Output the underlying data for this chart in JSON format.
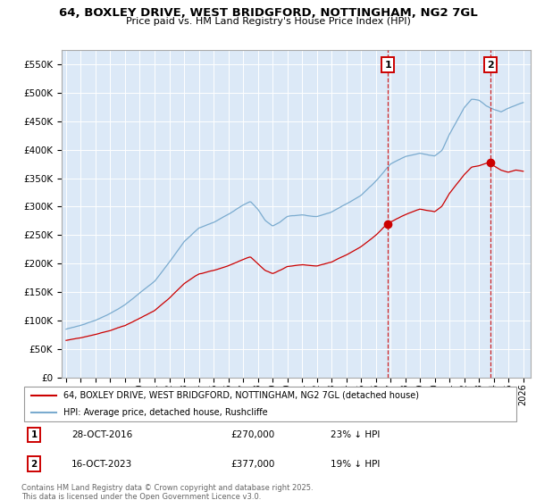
{
  "title": "64, BOXLEY DRIVE, WEST BRIDGFORD, NOTTINGHAM, NG2 7GL",
  "subtitle": "Price paid vs. HM Land Registry's House Price Index (HPI)",
  "ylim": [
    0,
    575000
  ],
  "yticks": [
    0,
    50000,
    100000,
    150000,
    200000,
    250000,
    300000,
    350000,
    400000,
    450000,
    500000,
    550000
  ],
  "ytick_labels": [
    "£0",
    "£50K",
    "£100K",
    "£150K",
    "£200K",
    "£250K",
    "£300K",
    "£350K",
    "£400K",
    "£450K",
    "£500K",
    "£550K"
  ],
  "xlim_start": 1994.7,
  "xlim_end": 2026.5,
  "background_color": "#dce9f7",
  "plot_bg_color": "#dce9f7",
  "red_color": "#cc0000",
  "blue_color": "#7aabcf",
  "sale1_x": 2016.83,
  "sale1_y": 270000,
  "sale1_label": "1",
  "sale1_date": "28-OCT-2016",
  "sale1_price": "£270,000",
  "sale1_hpi": "23% ↓ HPI",
  "sale2_x": 2023.79,
  "sale2_y": 377000,
  "sale2_label": "2",
  "sale2_date": "16-OCT-2023",
  "sale2_price": "£377,000",
  "sale2_hpi": "19% ↓ HPI",
  "legend_line1": "64, BOXLEY DRIVE, WEST BRIDGFORD, NOTTINGHAM, NG2 7GL (detached house)",
  "legend_line2": "HPI: Average price, detached house, Rushcliffe",
  "footer": "Contains HM Land Registry data © Crown copyright and database right 2025.\nThis data is licensed under the Open Government Licence v3.0."
}
